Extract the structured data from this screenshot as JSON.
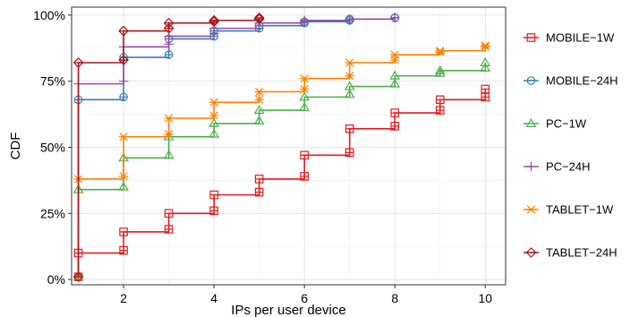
{
  "chart_data": {
    "type": "line",
    "step": true,
    "title": "",
    "xlabel": "IPs per user device",
    "ylabel": "CDF",
    "xlim": [
      0.85,
      10.45
    ],
    "ylim": [
      -0.02,
      1.03
    ],
    "x_ticks": [
      2,
      4,
      6,
      8,
      10
    ],
    "x_tick_labels": [
      "2",
      "4",
      "6",
      "8",
      "10"
    ],
    "y_ticks": [
      0,
      0.25,
      0.5,
      0.75,
      1.0
    ],
    "y_tick_labels": [
      "0%",
      "25%",
      "50%",
      "75%",
      "100%"
    ],
    "grid": true,
    "legend_position": "right",
    "series": [
      {
        "name": "MOBILE−1W",
        "color": "#e41a1c",
        "marker": "square-cross",
        "x": [
          1,
          2,
          3,
          4,
          5,
          6,
          7,
          8,
          9,
          10
        ],
        "y": [
          0.1,
          0.18,
          0.25,
          0.32,
          0.38,
          0.47,
          0.57,
          0.63,
          0.68,
          0.72
        ],
        "y_before": [
          0.01,
          0.11,
          0.19,
          0.26,
          0.33,
          0.39,
          0.48,
          0.58,
          0.64,
          0.69
        ]
      },
      {
        "name": "MOBILE−24H",
        "color": "#377eb8",
        "marker": "circle-bar",
        "x": [
          1,
          2,
          3,
          4,
          5,
          6,
          7,
          8
        ],
        "y": [
          0.68,
          0.84,
          0.91,
          0.94,
          0.96,
          0.975,
          0.985,
          0.99
        ],
        "y_before": [
          0.01,
          0.69,
          0.85,
          0.92,
          0.95,
          0.97,
          0.98,
          0.99
        ]
      },
      {
        "name": "PC−1W",
        "color": "#4daf4a",
        "marker": "triangle",
        "x": [
          1,
          2,
          3,
          4,
          5,
          6,
          7,
          8,
          9,
          10
        ],
        "y": [
          0.34,
          0.46,
          0.54,
          0.59,
          0.64,
          0.69,
          0.73,
          0.77,
          0.79,
          0.82
        ],
        "y_before": [
          0.01,
          0.35,
          0.47,
          0.55,
          0.6,
          0.65,
          0.7,
          0.74,
          0.78,
          0.8
        ]
      },
      {
        "name": "PC−24H",
        "color": "#984ea3",
        "marker": "plus",
        "x": [
          1,
          2,
          3,
          4,
          5,
          6,
          7,
          8
        ],
        "y": [
          0.74,
          0.88,
          0.92,
          0.95,
          0.97,
          0.98,
          0.985,
          0.99
        ],
        "y_before": [
          0.01,
          0.75,
          0.89,
          0.93,
          0.96,
          0.975,
          0.98,
          0.99
        ]
      },
      {
        "name": "TABLET−1W",
        "color": "#ff7f00",
        "marker": "x-star",
        "x": [
          1,
          2,
          3,
          4,
          5,
          6,
          7,
          8,
          9,
          10
        ],
        "y": [
          0.38,
          0.54,
          0.61,
          0.67,
          0.71,
          0.76,
          0.82,
          0.85,
          0.865,
          0.885
        ],
        "y_before": [
          0.01,
          0.39,
          0.55,
          0.62,
          0.68,
          0.72,
          0.77,
          0.83,
          0.86,
          0.88
        ]
      },
      {
        "name": "TABLET−24H",
        "color": "#a6161b",
        "marker": "diamond-cross",
        "x": [
          1,
          2,
          3,
          4,
          5
        ],
        "y": [
          0.82,
          0.94,
          0.97,
          0.98,
          0.99
        ],
        "y_before": [
          0.01,
          0.83,
          0.95,
          0.975,
          0.985
        ]
      }
    ]
  }
}
